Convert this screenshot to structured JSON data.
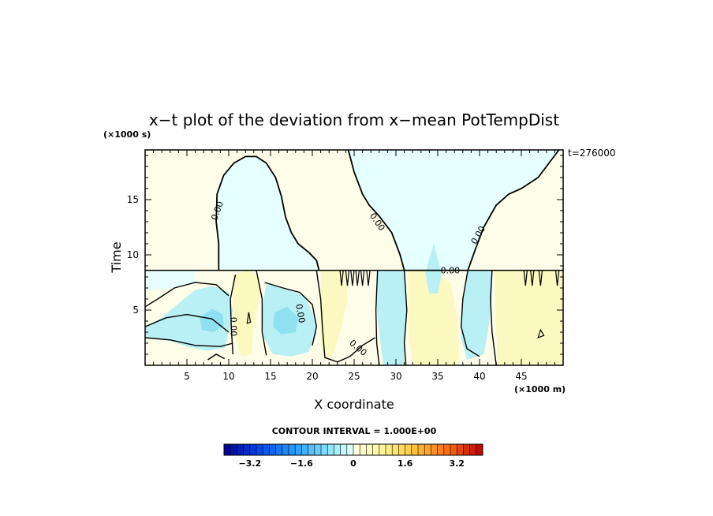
{
  "chart_data": {
    "type": "heatmap",
    "title": "x−t plot of the deviation from x−mean PotTempDist",
    "xlabel": "X coordinate",
    "ylabel": "Time",
    "x_unit": "(×1000 m)",
    "y_unit": "(×1000 s)",
    "annotation": "t=276000",
    "xlim": [
      0,
      50
    ],
    "ylim": [
      0,
      19.5
    ],
    "x_ticks": [
      5,
      10,
      15,
      20,
      25,
      30,
      35,
      40,
      45
    ],
    "y_ticks": [
      5,
      10,
      15
    ],
    "contour_label": "0.00",
    "contour_interval_text": "CONTOUR INTERVAL = 1.000E+00",
    "colorbar": {
      "range": [
        -4.0,
        4.0
      ],
      "step": 0.2,
      "tick_values": [
        -3.2,
        -1.6,
        0,
        1.6,
        3.2
      ],
      "tick_labels": [
        "−3.2",
        "−1.6",
        "0",
        "1.6",
        "3.2"
      ]
    },
    "colors": {
      "negative_light": "#e6ffff",
      "negative_mid": "#b8f0f5",
      "negative_strong": "#8fe0f0",
      "positive_light": "#fdfde9",
      "positive_mid": "#fbf8c0",
      "positive_strong": "#f6efa0"
    }
  }
}
